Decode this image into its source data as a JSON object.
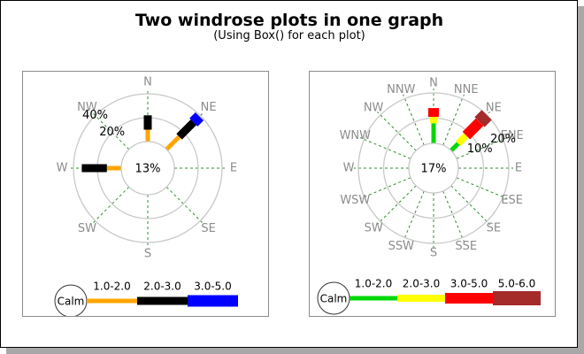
{
  "header": {
    "title": "Two windrose plots in one graph",
    "subtitle": "(Using Box() for each plot)"
  },
  "palette": {
    "ring_gray": "#c9c9c9",
    "radial_dash_green": "#2f8f2f",
    "direction_label_gray": "#8c8c8c",
    "text_black": "#000000",
    "panel_border_gray": "#8c8c8c",
    "frame_shadow_gray": "#a8a8a8",
    "background": "#ffffff"
  },
  "chart_data": [
    {
      "type": "windrose",
      "position": "left",
      "calm_label": "13%",
      "calm_pct": 13,
      "directions": [
        "N",
        "NE",
        "E",
        "SE",
        "S",
        "SW",
        "W",
        "NW"
      ],
      "rings": [
        {
          "pct": 20,
          "label": "20%"
        },
        {
          "pct": 40,
          "label": "40%"
        }
      ],
      "ring_label_direction": "NW",
      "max_pct": 40,
      "bins": [
        {
          "label": "1.0-2.0",
          "color": "#ffa500",
          "thickness": 5
        },
        {
          "label": "2.0-3.0",
          "color": "#000000",
          "thickness": 9
        },
        {
          "label": "3.0-5.0",
          "color": "#0000ff",
          "thickness": 13
        }
      ],
      "legend_calm_label": "Calm",
      "spokes": [
        {
          "dir": "N",
          "values": [
            10,
            12,
            0
          ]
        },
        {
          "dir": "NE",
          "values": [
            15,
            17,
            7
          ]
        },
        {
          "dir": "W",
          "values": [
            12,
            21,
            0
          ]
        }
      ]
    },
    {
      "type": "windrose",
      "position": "right",
      "calm_label": "17%",
      "calm_pct": 17,
      "directions": [
        "N",
        "NNE",
        "NE",
        "ENE",
        "E",
        "ESE",
        "SE",
        "SSE",
        "S",
        "SSW",
        "SW",
        "WSW",
        "W",
        "WNW",
        "NW",
        "NNW"
      ],
      "rings": [
        {
          "pct": 10,
          "label": "10%"
        },
        {
          "pct": 20,
          "label": "20%"
        }
      ],
      "ring_label_direction": "ENE",
      "max_pct": 20,
      "bins": [
        {
          "label": "1.0-2.0",
          "color": "#00d800",
          "thickness": 5
        },
        {
          "label": "2.0-3.0",
          "color": "#ffff00",
          "thickness": 8
        },
        {
          "label": "3.0-5.0",
          "color": "#ff0000",
          "thickness": 12
        },
        {
          "label": "5.0-6.0",
          "color": "#a52a2a",
          "thickness": 16
        }
      ],
      "legend_calm_label": "Calm",
      "spokes": [
        {
          "dir": "N",
          "values": [
            8,
            2.5,
            3.5,
            0
          ]
        },
        {
          "dir": "NE",
          "values": [
            4,
            4.5,
            7.5,
            4
          ]
        }
      ]
    }
  ]
}
